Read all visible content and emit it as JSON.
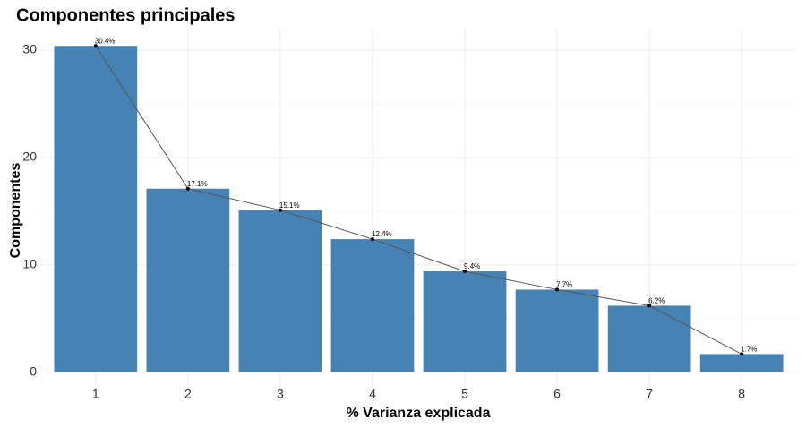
{
  "chart_data": {
    "type": "bar",
    "title": "Componentes principales",
    "x_label": "% Varianza explicada",
    "y_label": "Componentes",
    "categories": [
      "1",
      "2",
      "3",
      "4",
      "5",
      "6",
      "7",
      "8"
    ],
    "values": [
      30.4,
      17.1,
      15.1,
      12.4,
      9.4,
      7.7,
      6.2,
      1.7
    ],
    "value_labels": [
      "30.4%",
      "17.1%",
      "15.1%",
      "12.4%",
      "9.4%",
      "7.7%",
      "6.2%",
      "1.7%"
    ],
    "color": "#4682b4",
    "line_color": "#555555",
    "overlay_line": true,
    "ylim": [
      -1.52,
      31.92
    ],
    "yticks": [
      0,
      10,
      20,
      30
    ],
    "minor_yticks": [
      5,
      15,
      25
    ],
    "grid": true
  }
}
